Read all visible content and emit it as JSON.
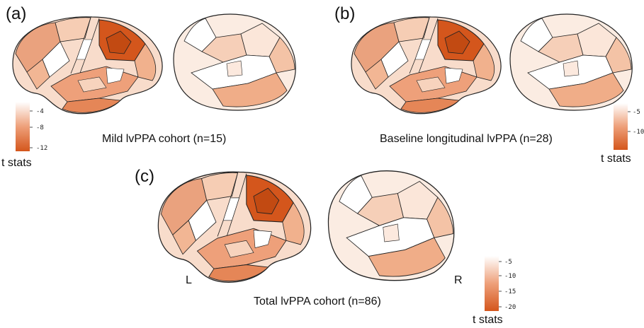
{
  "panels": {
    "a": {
      "label": "(a)",
      "caption": "Mild lvPPA cohort (n=15)",
      "colorbar_title": "t stats",
      "colorbar_ticks": [
        "-4",
        "-8",
        "-12"
      ]
    },
    "b": {
      "label": "(b)",
      "caption": "Baseline longitudinal lvPPA (n=28)",
      "colorbar_title": "t stats",
      "colorbar_ticks": [
        "-5",
        "-10"
      ]
    },
    "c": {
      "label": "(c)",
      "caption": "Total lvPPA cohort (n=86)",
      "colorbar_title": "t stats",
      "colorbar_ticks": [
        "-5",
        "-10",
        "-15",
        "-20"
      ],
      "left_label": "L",
      "right_label": "R"
    }
  },
  "colors": {
    "strong": "#d4561c",
    "medium": "#e9946a",
    "light": "#f5c7ab",
    "faint": "#fbe6d9",
    "none": "#ffffff",
    "outline": "#222222"
  }
}
